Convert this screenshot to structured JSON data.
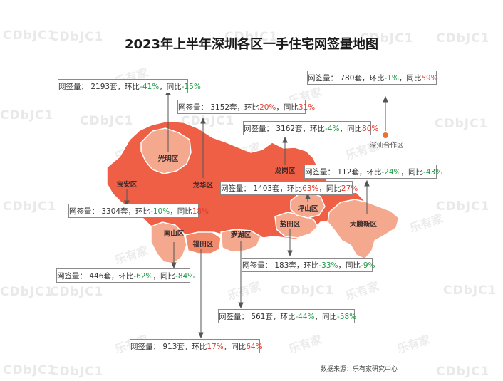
{
  "title": "2023年上半年深圳各区一手住宅网签量地图",
  "source": "数据来源：乐有家研究中心",
  "watermark": {
    "latin": "CDbJC1",
    "brand": "乐有家"
  },
  "labels": {
    "volume": "网签量：",
    "unit": "套",
    "mom": "环比",
    "yoy": "同比"
  },
  "colors": {
    "dark": "#ee5f46",
    "mid": "#f28a6c",
    "light": "#f4a88d",
    "positive": "#e03a2c",
    "negative": "#1e9a45"
  },
  "districts": [
    {
      "name": "光明区",
      "volume": 2193,
      "mom": "-41%",
      "yoy": "-15%"
    },
    {
      "name": "龙华区",
      "volume": 3152,
      "mom": "20%",
      "yoy": "31%"
    },
    {
      "name": "龙岗区",
      "volume": 3162,
      "mom": "-4%",
      "yoy": "80%"
    },
    {
      "name": "深汕合作区",
      "volume": 780,
      "mom": "-1%",
      "yoy": "59%"
    },
    {
      "name": "坪山区",
      "volume": 1403,
      "mom": "63%",
      "yoy": "27%"
    },
    {
      "name": "大鹏新区",
      "volume": 112,
      "mom": "-24%",
      "yoy": "-43%"
    },
    {
      "name": "宝安区",
      "volume": 3304,
      "mom": "-10%",
      "yoy": "18%"
    },
    {
      "name": "南山区",
      "volume": 446,
      "mom": "-62%",
      "yoy": "-84%"
    },
    {
      "name": "盐田区",
      "volume": 183,
      "mom": "-33%",
      "yoy": "-9%"
    },
    {
      "name": "罗湖区",
      "volume": 561,
      "mom": "-44%",
      "yoy": "-58%"
    },
    {
      "name": "福田区",
      "volume": 913,
      "mom": "17%",
      "yoy": "64%"
    }
  ]
}
